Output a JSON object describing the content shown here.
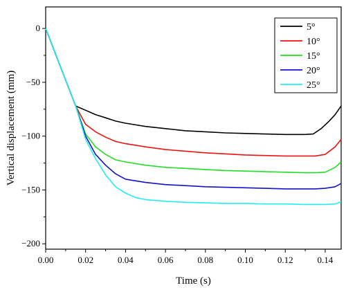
{
  "chart_data": {
    "type": "line",
    "title": "",
    "xlabel": "Time (s)",
    "ylabel": "Vertical displacement (mm)",
    "xlim": [
      0,
      0.148
    ],
    "ylim": [
      -205,
      20
    ],
    "xticks": [
      0.0,
      0.02,
      0.04,
      0.06,
      0.08,
      0.1,
      0.12,
      0.14
    ],
    "xtick_labels": [
      "0.00",
      "0.02",
      "0.04",
      "0.06",
      "0.08",
      "0.10",
      "0.12",
      "0.14"
    ],
    "yticks": [
      0,
      -50,
      -100,
      -150,
      -200
    ],
    "ytick_labels": [
      "0",
      "−50",
      "−100",
      "−150",
      "−200"
    ],
    "grid": false,
    "legend": "top-right",
    "series": [
      {
        "name": "5°",
        "color": "#000000",
        "x": [
          0,
          0.005,
          0.01,
          0.015,
          0.02,
          0.025,
          0.03,
          0.035,
          0.04,
          0.05,
          0.06,
          0.07,
          0.08,
          0.09,
          0.1,
          0.11,
          0.12,
          0.13,
          0.134,
          0.138,
          0.142,
          0.145,
          0.148
        ],
        "values": [
          0,
          -24,
          -48,
          -72,
          -76,
          -80,
          -83,
          -86,
          -88,
          -91,
          -93,
          -95,
          -96,
          -97,
          -97.5,
          -98,
          -98.5,
          -98.5,
          -98,
          -93,
          -86,
          -80,
          -72
        ]
      },
      {
        "name": "10°",
        "color": "#ee1111",
        "x": [
          0,
          0.005,
          0.01,
          0.015,
          0.02,
          0.025,
          0.03,
          0.035,
          0.04,
          0.05,
          0.06,
          0.07,
          0.08,
          0.09,
          0.1,
          0.11,
          0.12,
          0.13,
          0.135,
          0.14,
          0.145,
          0.148
        ],
        "values": [
          0,
          -24,
          -48,
          -72,
          -89,
          -96,
          -101,
          -105,
          -107,
          -110,
          -112.5,
          -114,
          -115.5,
          -116.5,
          -117.5,
          -118,
          -118.5,
          -118.5,
          -118.5,
          -117,
          -110,
          -103
        ]
      },
      {
        "name": "15°",
        "color": "#22dd22",
        "x": [
          0,
          0.005,
          0.01,
          0.015,
          0.02,
          0.025,
          0.03,
          0.035,
          0.04,
          0.05,
          0.06,
          0.07,
          0.08,
          0.09,
          0.1,
          0.11,
          0.12,
          0.13,
          0.135,
          0.14,
          0.145,
          0.148
        ],
        "values": [
          0,
          -24,
          -48,
          -72,
          -98,
          -110,
          -117,
          -122,
          -124,
          -127,
          -129,
          -130,
          -131,
          -132,
          -132.5,
          -133,
          -133.5,
          -134,
          -134,
          -133.5,
          -129,
          -124
        ]
      },
      {
        "name": "20°",
        "color": "#1111cc",
        "x": [
          0,
          0.005,
          0.01,
          0.015,
          0.02,
          0.025,
          0.03,
          0.035,
          0.04,
          0.05,
          0.06,
          0.07,
          0.08,
          0.09,
          0.1,
          0.11,
          0.12,
          0.13,
          0.135,
          0.14,
          0.145,
          0.148
        ],
        "values": [
          0,
          -24,
          -48,
          -72,
          -100,
          -117,
          -127,
          -135,
          -140,
          -143,
          -145,
          -146,
          -147,
          -147.5,
          -148,
          -148.5,
          -149,
          -149,
          -149,
          -148.5,
          -147,
          -144
        ]
      },
      {
        "name": "25°",
        "color": "#22eeee",
        "x": [
          0,
          0.005,
          0.01,
          0.015,
          0.02,
          0.025,
          0.03,
          0.035,
          0.04,
          0.045,
          0.05,
          0.06,
          0.07,
          0.08,
          0.09,
          0.1,
          0.11,
          0.12,
          0.13,
          0.135,
          0.14,
          0.145,
          0.148
        ],
        "values": [
          0,
          -24,
          -48,
          -72,
          -103,
          -121,
          -136,
          -147,
          -153,
          -157,
          -159,
          -160.5,
          -161.5,
          -162,
          -162.5,
          -162.5,
          -163,
          -163,
          -163.5,
          -163.5,
          -163.5,
          -163,
          -161
        ]
      }
    ]
  }
}
